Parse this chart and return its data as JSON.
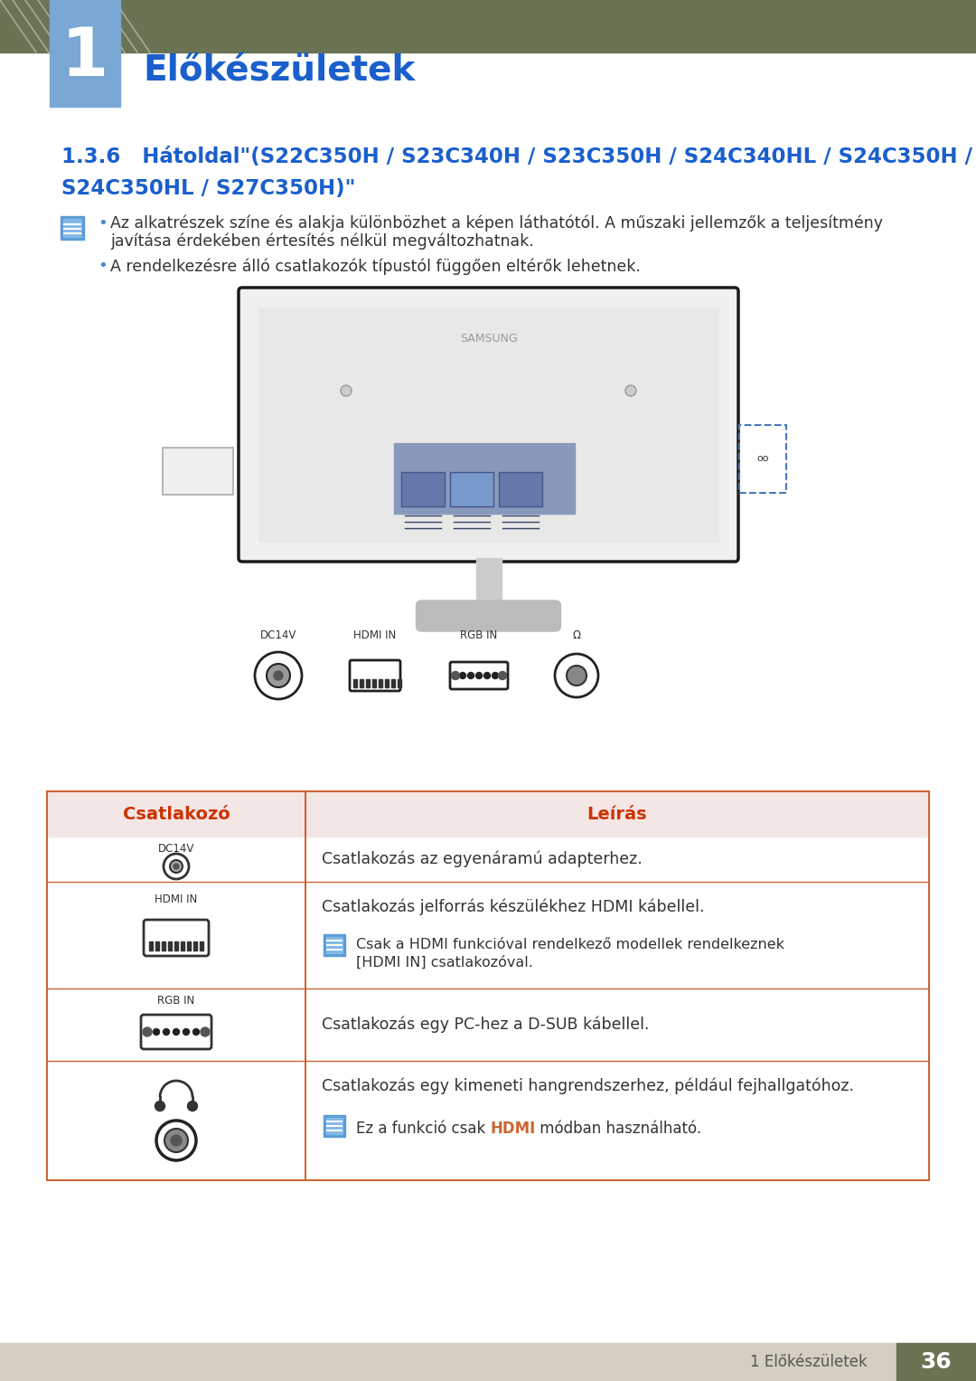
{
  "page_bg": "#ffffff",
  "header_bar_color": "#6b7355",
  "chapter_block_color": "#7ba7d4",
  "chapter_number": "1",
  "chapter_title": "Előkészületek",
  "chapter_title_color": "#1a5fcc",
  "section_title_line1": "1.3.6   Hátoldal\"(S22C350H / S23C340H / S23C350H / S24C340HL / S24C350H /",
  "section_title_line2": "S24C350HL / S27C350H)\"",
  "section_title_color": "#1a5fcc",
  "bullet_text_1a": "Az alkatrészek színe és alakja különbözhet a képen láthatótól. A műszaki jellemzők a teljesítmény",
  "bullet_text_1b": "javítása érdekében értesítés nélkül megváltozhatnak.",
  "bullet_text_2": "A rendelkezésre álló csatlakozók típustól függően eltérők lehetnek.",
  "table_header_bg": "#f5e6e6",
  "table_header_text_col": "#cc3300",
  "table_border_color": "#cc6633",
  "table_col1_header": "Csatlakozó",
  "table_col2_header": "Leírás",
  "row1_label": "DC14V",
  "row1_desc": "Csatlakozás az egyenáramú adapterhez.",
  "row2_label": "HDMI IN",
  "row2_desc1": "Csatlakozás jelforrás készülékhez HDMI kábellel.",
  "row2_desc2a": "Csak a HDMI funkcióval rendelkező modellek rendelkeznek",
  "row2_desc2b": "[HDMI IN] csatlakozóval.",
  "row3_label": "RGB IN",
  "row3_desc": "Csatlakozás egy PC-hez a D-SUB kábellel.",
  "row4_desc1": "Csatlakozás egy kimeneti hangrendszerhez, például fejhallgatóhoz.",
  "row4_desc2": "Ez a funkció csak ",
  "row4_hdmi": "HDMI",
  "row4_desc3": " módban használható.",
  "hdmi_highlight_color": "#cc6633",
  "footer_bg": "#d4cfc0",
  "footer_text": "1 Előkészületek",
  "footer_page": "36",
  "footer_page_bg": "#6b7355",
  "footer_page_color": "#ffffff",
  "text_color": "#333333",
  "note_icon_blue": "#4488cc"
}
